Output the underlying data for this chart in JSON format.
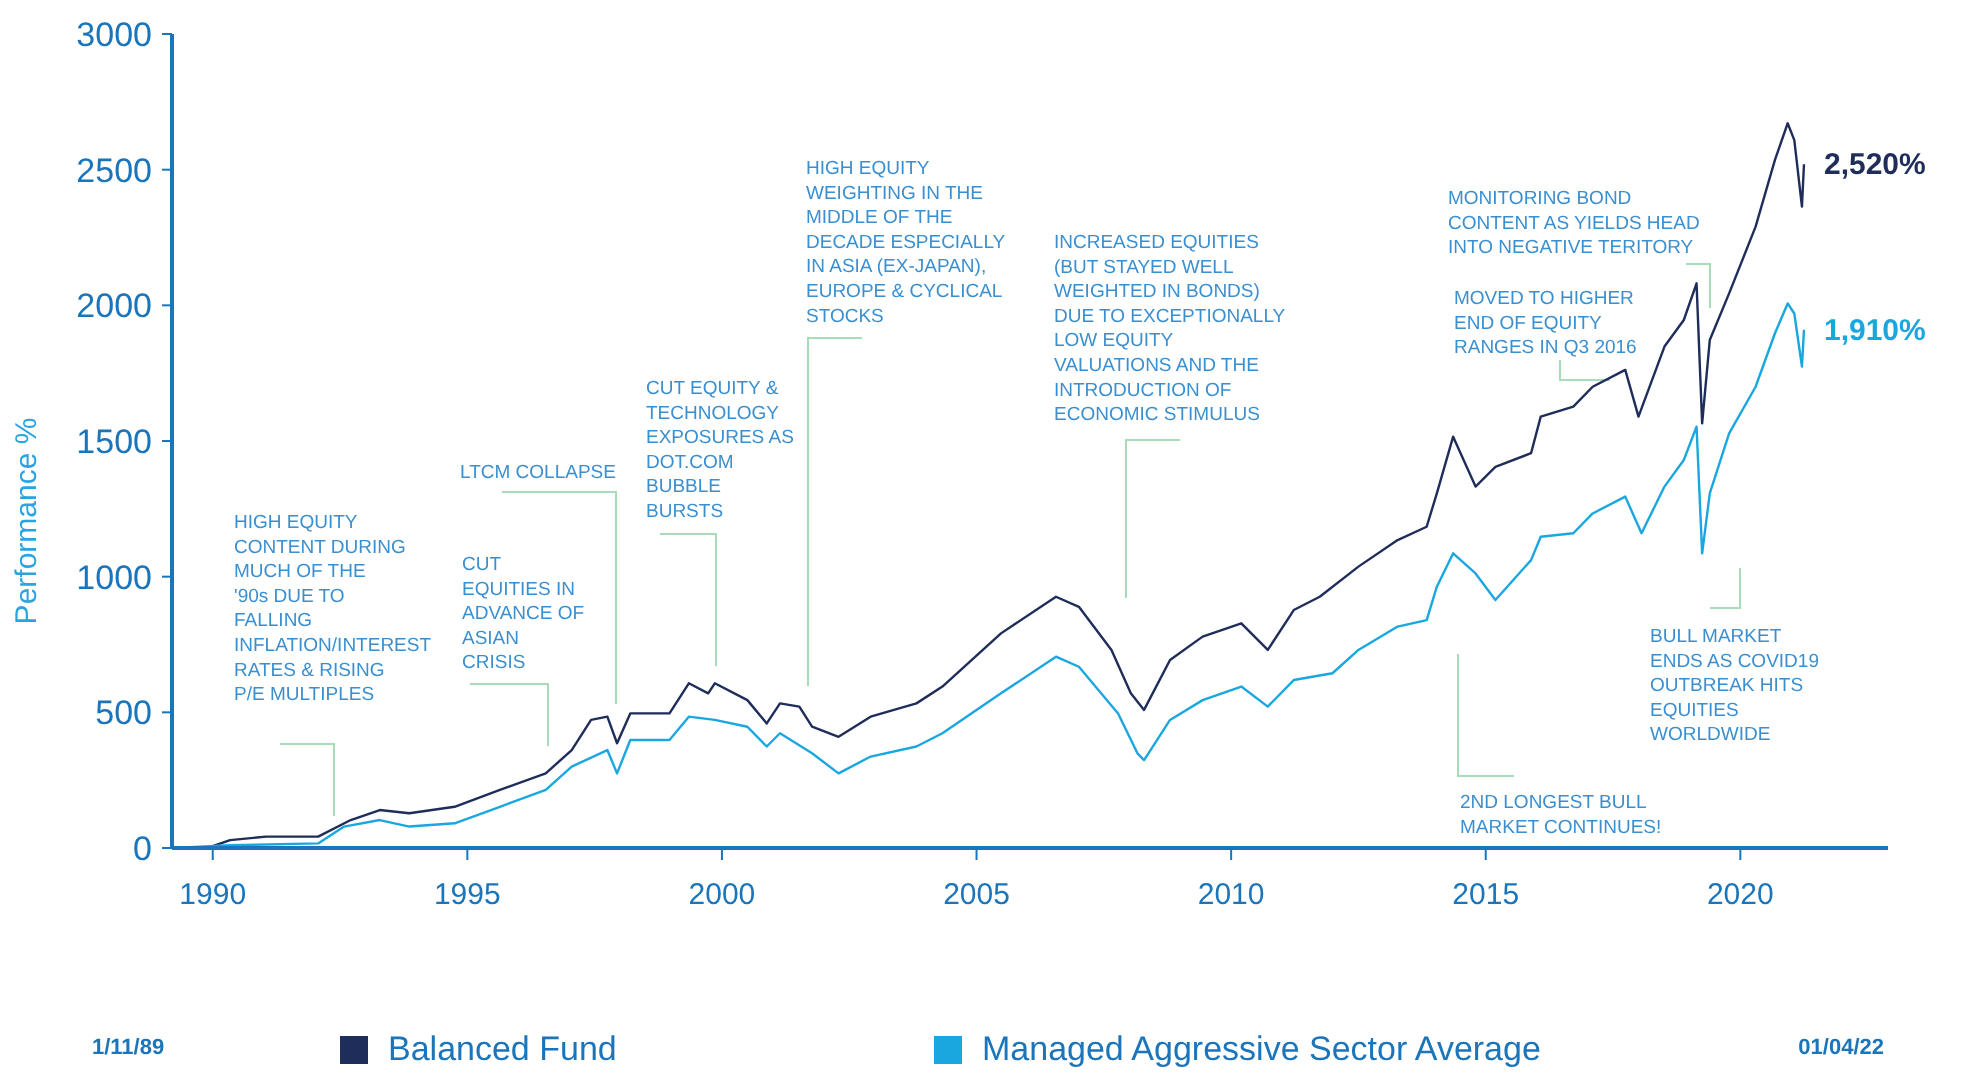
{
  "chart_data": {
    "type": "line",
    "ylabel": "Performance %",
    "xlim": [
      1989.2,
      2022.9
    ],
    "xticks": [
      1990,
      1995,
      2000,
      2005,
      2010,
      2015,
      2020
    ],
    "ylim": [
      0,
      3000
    ],
    "yticks": [
      0,
      500,
      1000,
      1500,
      2000,
      2500,
      3000
    ],
    "grid": false,
    "legend": "bottom",
    "marker": "none",
    "line_style": "solid",
    "series": [
      {
        "name": "Balanced Fund",
        "color": "#1f2d5a",
        "x": [
          1989.23,
          1989.9,
          1990.34,
          1991.05,
          1992.07,
          1992.71,
          1993.28,
          1993.86,
          1994.75,
          1995.64,
          1996.54,
          1997.05,
          1997.43,
          1997.75,
          1997.94,
          1998.2,
          1998.97,
          1999.35,
          1999.73,
          1999.86,
          2000.5,
          2000.88,
          2001.14,
          2001.52,
          2001.77,
          2002.29,
          2002.92,
          2003.82,
          2004.33,
          2005.48,
          2006.56,
          2007.01,
          2007.65,
          2008.03,
          2008.29,
          2008.8,
          2009.44,
          2010.2,
          2010.72,
          2011.23,
          2011.74,
          2012.5,
          2013.27,
          2013.84,
          2014.04,
          2014.36,
          2014.8,
          2015.19,
          2015.89,
          2016.08,
          2016.72,
          2017.1,
          2017.74,
          2018.0,
          2018.51,
          2018.89,
          2019.14,
          2019.25,
          2019.4,
          2019.78,
          2020.3,
          2020.68,
          2020.93,
          2021.06,
          2021.21,
          2021.25
        ],
        "values": [
          0,
          0,
          29,
          42,
          42,
          103,
          140,
          128,
          152,
          214,
          275,
          361,
          472,
          484,
          386,
          496,
          496,
          607,
          570,
          607,
          545,
          459,
          533,
          521,
          447,
          410,
          484,
          533,
          595,
          791,
          926,
          889,
          730,
          570,
          509,
          693,
          779,
          828,
          730,
          877,
          926,
          1037,
          1135,
          1184,
          1307,
          1516,
          1332,
          1405,
          1455,
          1590,
          1627,
          1700,
          1762,
          1590,
          1848,
          1946,
          2081,
          1565,
          1872,
          2044,
          2290,
          2536,
          2671,
          2609,
          2364,
          2520
        ],
        "value_labels": [
          null,
          null,
          null,
          null,
          null,
          null,
          null,
          null,
          null,
          null,
          null,
          null,
          null,
          null,
          null,
          null,
          null,
          null,
          null,
          null,
          null,
          null,
          null,
          null,
          null,
          null,
          null,
          null,
          null,
          null,
          null,
          null,
          null,
          null,
          null,
          null,
          null,
          null,
          null,
          null,
          null,
          null,
          null,
          null,
          null,
          null,
          null,
          null,
          null,
          null,
          null,
          null,
          null,
          null,
          null,
          null,
          null,
          null,
          null,
          null,
          null,
          null,
          null,
          null,
          null,
          "2,520%"
        ]
      },
      {
        "name": "Managed Aggressive Sector Average",
        "color": "#1aa7e0",
        "x": [
          1989.23,
          1990.34,
          1992.07,
          1992.58,
          1993.28,
          1993.86,
          1994.75,
          1995.64,
          1996.54,
          1997.05,
          1997.75,
          1997.94,
          1998.2,
          1998.97,
          1999.35,
          1999.86,
          2000.5,
          2000.88,
          2001.14,
          2001.77,
          2002.29,
          2002.92,
          2003.82,
          2004.33,
          2005.48,
          2006.56,
          2007.01,
          2007.78,
          2008.16,
          2008.29,
          2008.8,
          2009.44,
          2010.2,
          2010.72,
          2011.23,
          2011.99,
          2012.5,
          2013.27,
          2013.84,
          2014.04,
          2014.36,
          2014.8,
          2015.19,
          2015.89,
          2016.08,
          2016.72,
          2017.1,
          2017.74,
          2018.06,
          2018.51,
          2018.89,
          2019.14,
          2019.25,
          2019.4,
          2019.78,
          2020.3,
          2020.68,
          2020.93,
          2021.06,
          2021.21,
          2021.25
        ],
        "values": [
          0,
          10,
          17,
          79,
          103,
          79,
          91,
          152,
          214,
          300,
          361,
          275,
          398,
          398,
          484,
          472,
          447,
          374,
          423,
          349,
          275,
          337,
          374,
          423,
          570,
          705,
          668,
          496,
          349,
          324,
          472,
          545,
          595,
          521,
          619,
          644,
          730,
          816,
          840,
          963,
          1086,
          1012,
          914,
          1061,
          1147,
          1160,
          1233,
          1295,
          1160,
          1332,
          1430,
          1553,
          1086,
          1307,
          1528,
          1700,
          1897,
          2007,
          1970,
          1774,
          1910
        ],
        "value_labels": [
          null,
          null,
          null,
          null,
          null,
          null,
          null,
          null,
          null,
          null,
          null,
          null,
          null,
          null,
          null,
          null,
          null,
          null,
          null,
          null,
          null,
          null,
          null,
          null,
          null,
          null,
          null,
          null,
          null,
          null,
          null,
          null,
          null,
          null,
          null,
          null,
          null,
          null,
          null,
          null,
          null,
          null,
          null,
          null,
          null,
          null,
          null,
          null,
          null,
          null,
          null,
          null,
          null,
          null,
          null,
          null,
          null,
          null,
          null,
          null,
          "1,910%"
        ]
      }
    ],
    "annotations": [
      "HIGH EQUITY CONTENT DURING MUCH OF THE '90s DUE TO FALLING INFLATION/INTEREST RATES & RISING P/E MULTIPLES",
      "CUT EQUITIES IN ADVANCE OF ASIAN CRISIS",
      "LTCM COLLAPSE",
      "CUT EQUITY & TECHNOLOGY EXPOSURES AS DOT.COM BUBBLE BURSTS",
      "HIGH EQUITY WEIGHTING IN THE MIDDLE OF THE DECADE ESPECIALLY IN ASIA (EX-JAPAN), EUROPE & CYCLICAL STOCKS",
      "INCREASED EQUITIES (BUT STAYED WELL WEIGHTED IN BONDS) DUE TO EXCEPTIONALLY LOW EQUITY VALUATIONS AND THE INTRODUCTION OF ECONOMIC STIMULUS",
      "MONITORING BOND CONTENT AS YIELDS HEAD INTO NEGATIVE TERITORY",
      "MOVED TO HIGHER END OF EQUITY RANGES IN Q3 2016",
      "BULL MARKET ENDS AS COVID19 OUTBREAK HITS EQUITIES WORLDWIDE",
      "2ND LONGEST BULL MARKET CONTINUES!",
      "1/11/89",
      "01/04/22"
    ]
  }
}
